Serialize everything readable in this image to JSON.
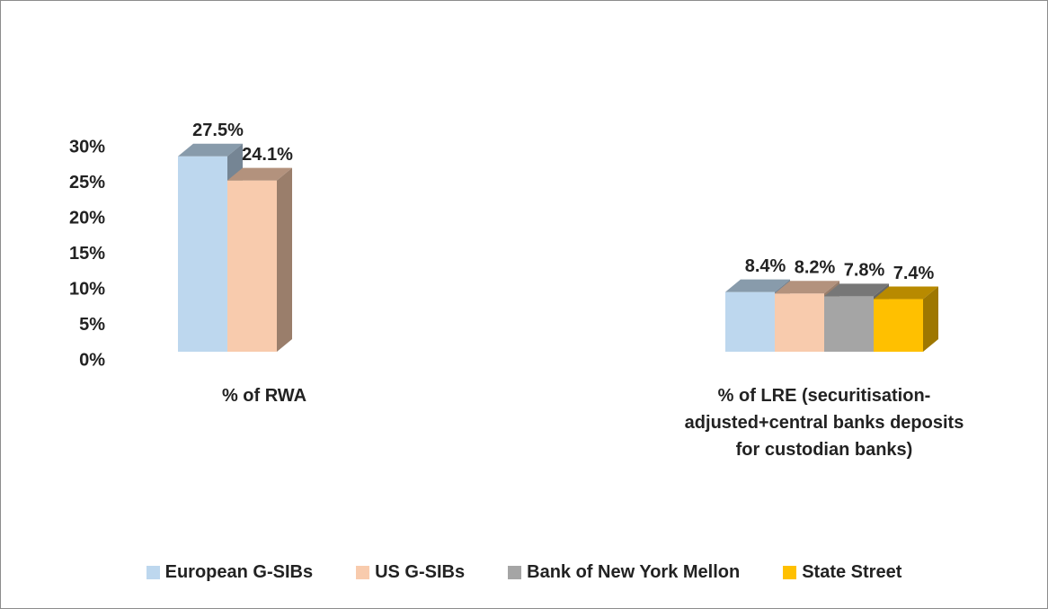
{
  "chart_data": {
    "type": "bar3d",
    "categories": [
      "% of RWA",
      "% of LRE (securitisation-adjusted+central banks deposits for custodian banks)"
    ],
    "series": [
      {
        "name": "European G-SIBs",
        "color": "#bdd7ee",
        "values": [
          27.5,
          8.4
        ],
        "value_labels": [
          "27.5%",
          "8.4%"
        ]
      },
      {
        "name": "US G-SIBs",
        "color": "#f8cbad",
        "values": [
          24.1,
          8.2
        ],
        "value_labels": [
          "24.1%",
          "8.2%"
        ]
      },
      {
        "name": "Bank of New York Mellon",
        "color": "#a5a5a5",
        "values": [
          null,
          7.8
        ],
        "value_labels": [
          null,
          "7.8%"
        ]
      },
      {
        "name": "State Street",
        "color": "#ffc000",
        "values": [
          null,
          7.4
        ],
        "value_labels": [
          null,
          "7.4%"
        ]
      }
    ],
    "ylim": [
      0,
      30
    ],
    "yticks": [
      {
        "value": 0,
        "label": "0%"
      },
      {
        "value": 5,
        "label": "5%"
      },
      {
        "value": 10,
        "label": "10%"
      },
      {
        "value": 15,
        "label": "15%"
      },
      {
        "value": 20,
        "label": "20%"
      },
      {
        "value": 25,
        "label": "25%"
      },
      {
        "value": 30,
        "label": "30%"
      }
    ],
    "legend": "bottom"
  }
}
